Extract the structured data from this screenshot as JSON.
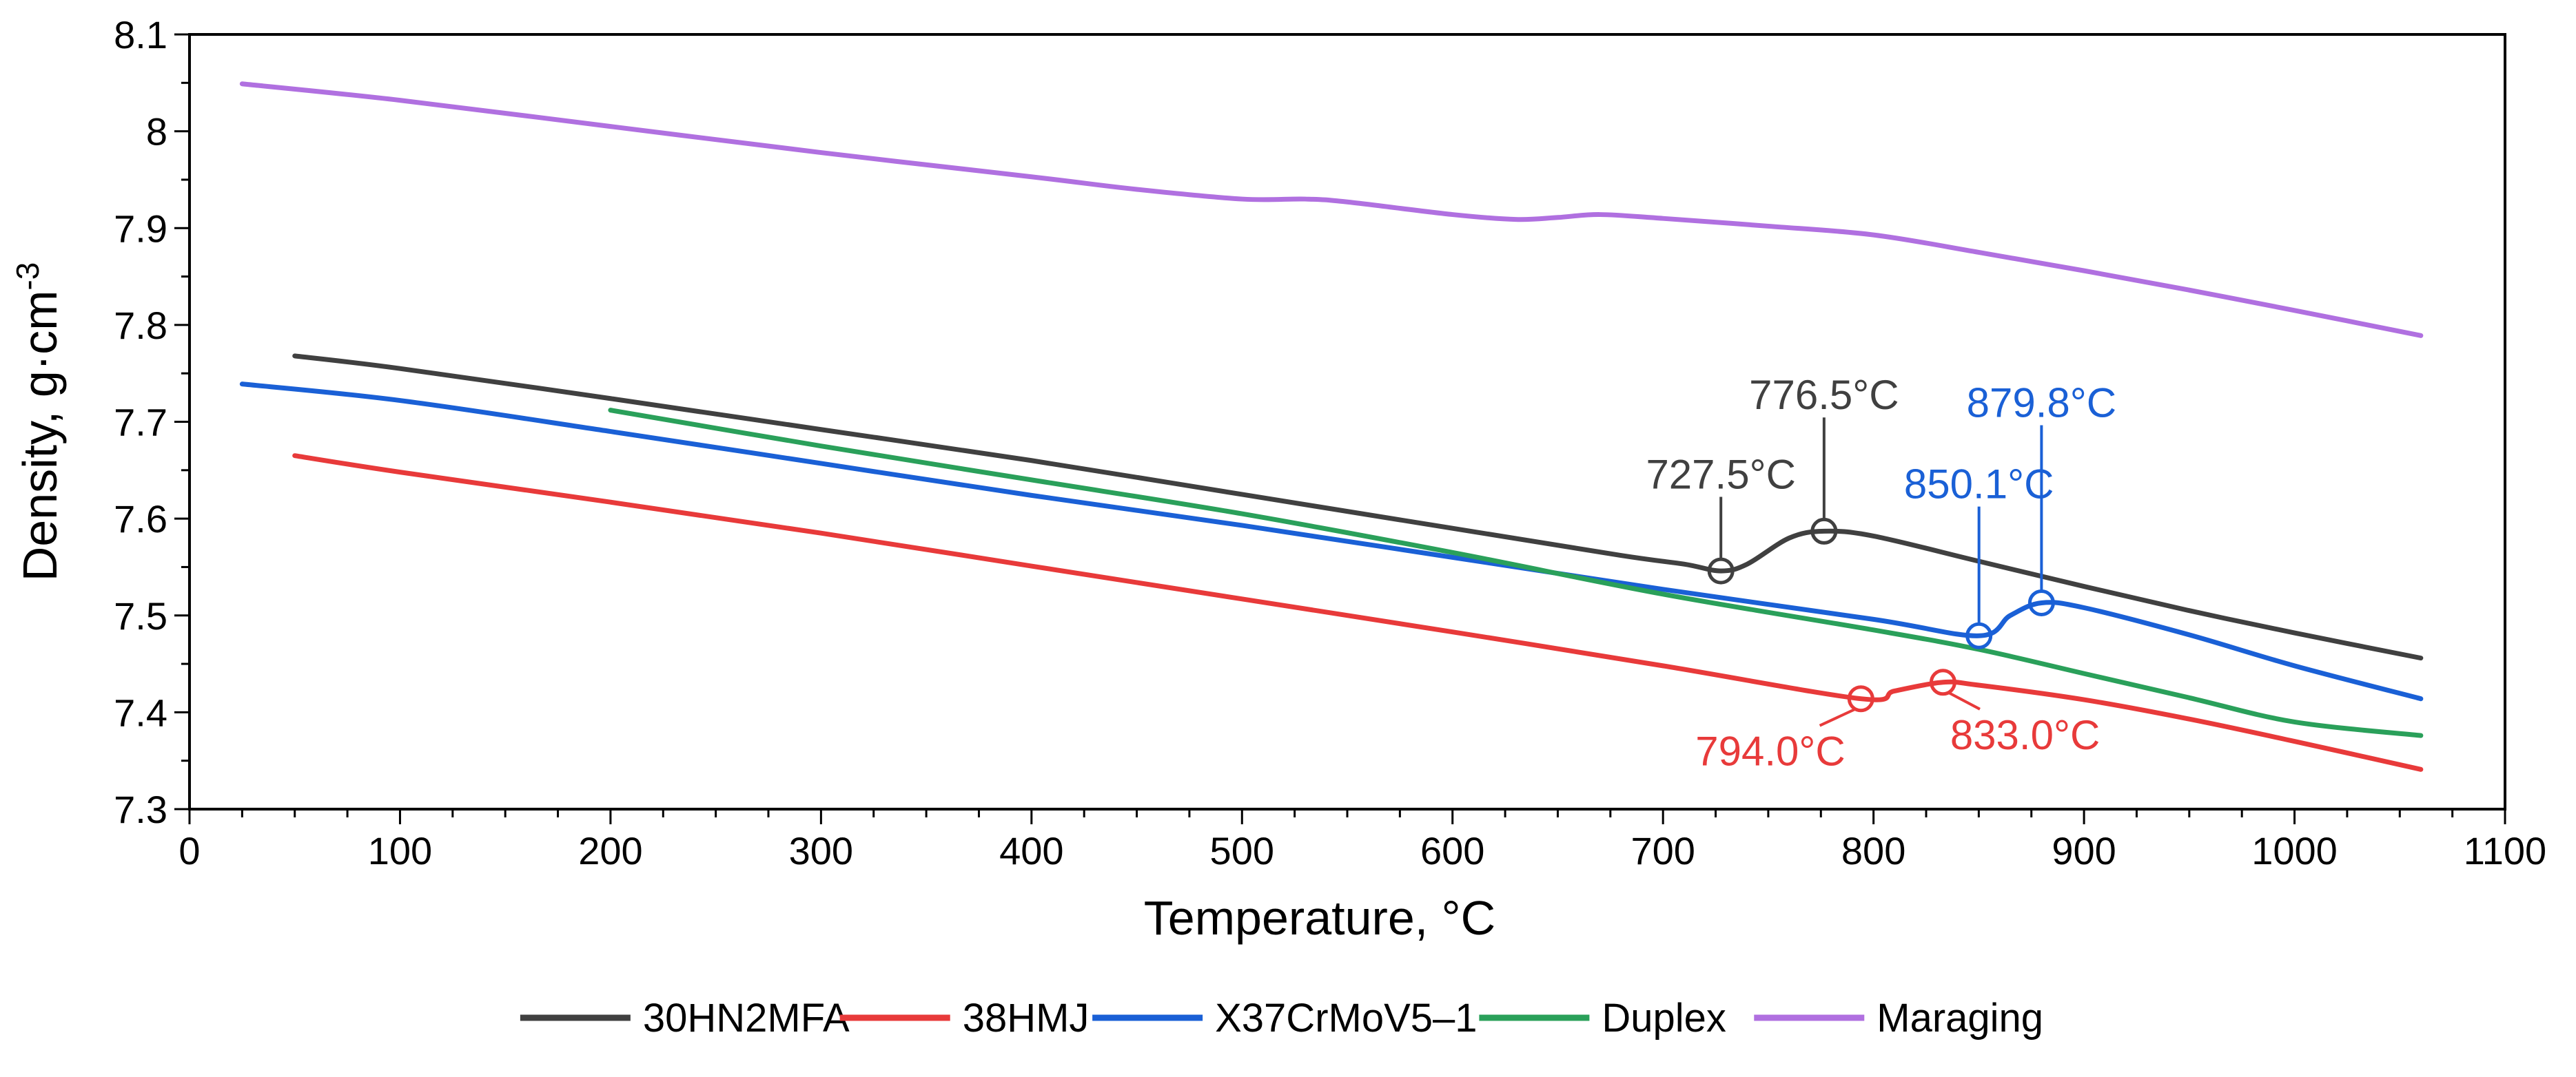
{
  "chart_data": {
    "type": "line",
    "title": "",
    "xlabel": "Temperature, °C",
    "ylabel_main": "Density, g·cm",
    "ylabel_sup": "-3",
    "xlim": [
      0,
      1100
    ],
    "ylim": [
      7.3,
      8.1
    ],
    "xticks": [
      0,
      100,
      200,
      300,
      400,
      500,
      600,
      700,
      800,
      900,
      1000,
      1100
    ],
    "xtick_labels": [
      "0",
      "100",
      "200",
      "300",
      "400",
      "500",
      "600",
      "700",
      "800",
      "900",
      "1000",
      "1100"
    ],
    "yticks": [
      7.3,
      7.4,
      7.5,
      7.6,
      7.7,
      7.8,
      7.9,
      8.0,
      8.1
    ],
    "ytick_labels": [
      "7.3",
      "7.4",
      "7.5",
      "7.6",
      "7.7",
      "7.8",
      "7.9",
      "8",
      "8.1"
    ],
    "grid": false,
    "legend_position": "bottom",
    "series": [
      {
        "name": "30HN2MFA",
        "color": "#404040",
        "x": [
          50,
          100,
          200,
          300,
          400,
          500,
          600,
          680,
          710,
          727.5,
          740,
          760,
          776.5,
          800,
          850,
          900,
          950,
          1000,
          1060
        ],
        "y": [
          7.768,
          7.755,
          7.724,
          7.692,
          7.66,
          7.625,
          7.59,
          7.562,
          7.553,
          7.546,
          7.553,
          7.58,
          7.587,
          7.582,
          7.556,
          7.53,
          7.505,
          7.482,
          7.456
        ]
      },
      {
        "name": "38HMJ",
        "color": "#e83a3a",
        "x": [
          50,
          100,
          200,
          300,
          400,
          500,
          600,
          700,
          794,
          810,
          833,
          850,
          900,
          950,
          1000,
          1060
        ],
        "y": [
          7.665,
          7.648,
          7.617,
          7.585,
          7.551,
          7.517,
          7.483,
          7.448,
          7.414,
          7.422,
          7.431,
          7.428,
          7.413,
          7.393,
          7.37,
          7.341
        ]
      },
      {
        "name": "X37CrMoV5–1",
        "color": "#1a60d6",
        "x": [
          25,
          100,
          200,
          300,
          400,
          500,
          600,
          700,
          800,
          850.1,
          865,
          879.8,
          900,
          950,
          1000,
          1060
        ],
        "y": [
          7.739,
          7.722,
          7.69,
          7.657,
          7.624,
          7.593,
          7.56,
          7.527,
          7.496,
          7.479,
          7.5,
          7.513,
          7.508,
          7.48,
          7.448,
          7.414
        ]
      },
      {
        "name": "Duplex",
        "color": "#2aa05a",
        "x": [
          200,
          300,
          400,
          500,
          600,
          700,
          800,
          850,
          900,
          950,
          1000,
          1060
        ],
        "y": [
          7.712,
          7.675,
          7.64,
          7.605,
          7.565,
          7.522,
          7.485,
          7.465,
          7.44,
          7.415,
          7.39,
          7.376
        ]
      },
      {
        "name": "Maraging",
        "color": "#b070e0",
        "x": [
          25,
          100,
          200,
          300,
          400,
          450,
          500,
          530,
          550,
          600,
          630,
          650,
          670,
          700,
          750,
          800,
          850,
          900,
          950,
          1000,
          1060
        ],
        "y": [
          8.049,
          8.032,
          8.005,
          7.978,
          7.953,
          7.94,
          7.93,
          7.93,
          7.927,
          7.914,
          7.909,
          7.911,
          7.914,
          7.91,
          7.902,
          7.893,
          7.875,
          7.856,
          7.836,
          7.815,
          7.789
        ]
      }
    ],
    "annotations": [
      {
        "label": "727.5°C",
        "x": 727.5,
        "y": 7.546,
        "color": "#404040",
        "side": "above",
        "label_x": 727.5,
        "label_y": 7.631
      },
      {
        "label": "776.5°C",
        "x": 776.5,
        "y": 7.587,
        "color": "#404040",
        "side": "above",
        "label_x": 776.5,
        "label_y": 7.713
      },
      {
        "label": "850.1°C",
        "x": 850.1,
        "y": 7.479,
        "color": "#1a60d6",
        "side": "above",
        "label_x": 850.1,
        "label_y": 7.621
      },
      {
        "label": "879.8°C",
        "x": 879.8,
        "y": 7.513,
        "color": "#1a60d6",
        "side": "above",
        "label_x": 879.8,
        "label_y": 7.705
      },
      {
        "label": "794.0°C",
        "x": 794.0,
        "y": 7.414,
        "color": "#e83a3a",
        "side": "below",
        "label_x": 751,
        "label_y": 7.345
      },
      {
        "label": "833.0°C",
        "x": 833.0,
        "y": 7.431,
        "color": "#e83a3a",
        "side": "below",
        "label_x": 872,
        "label_y": 7.362
      }
    ]
  }
}
